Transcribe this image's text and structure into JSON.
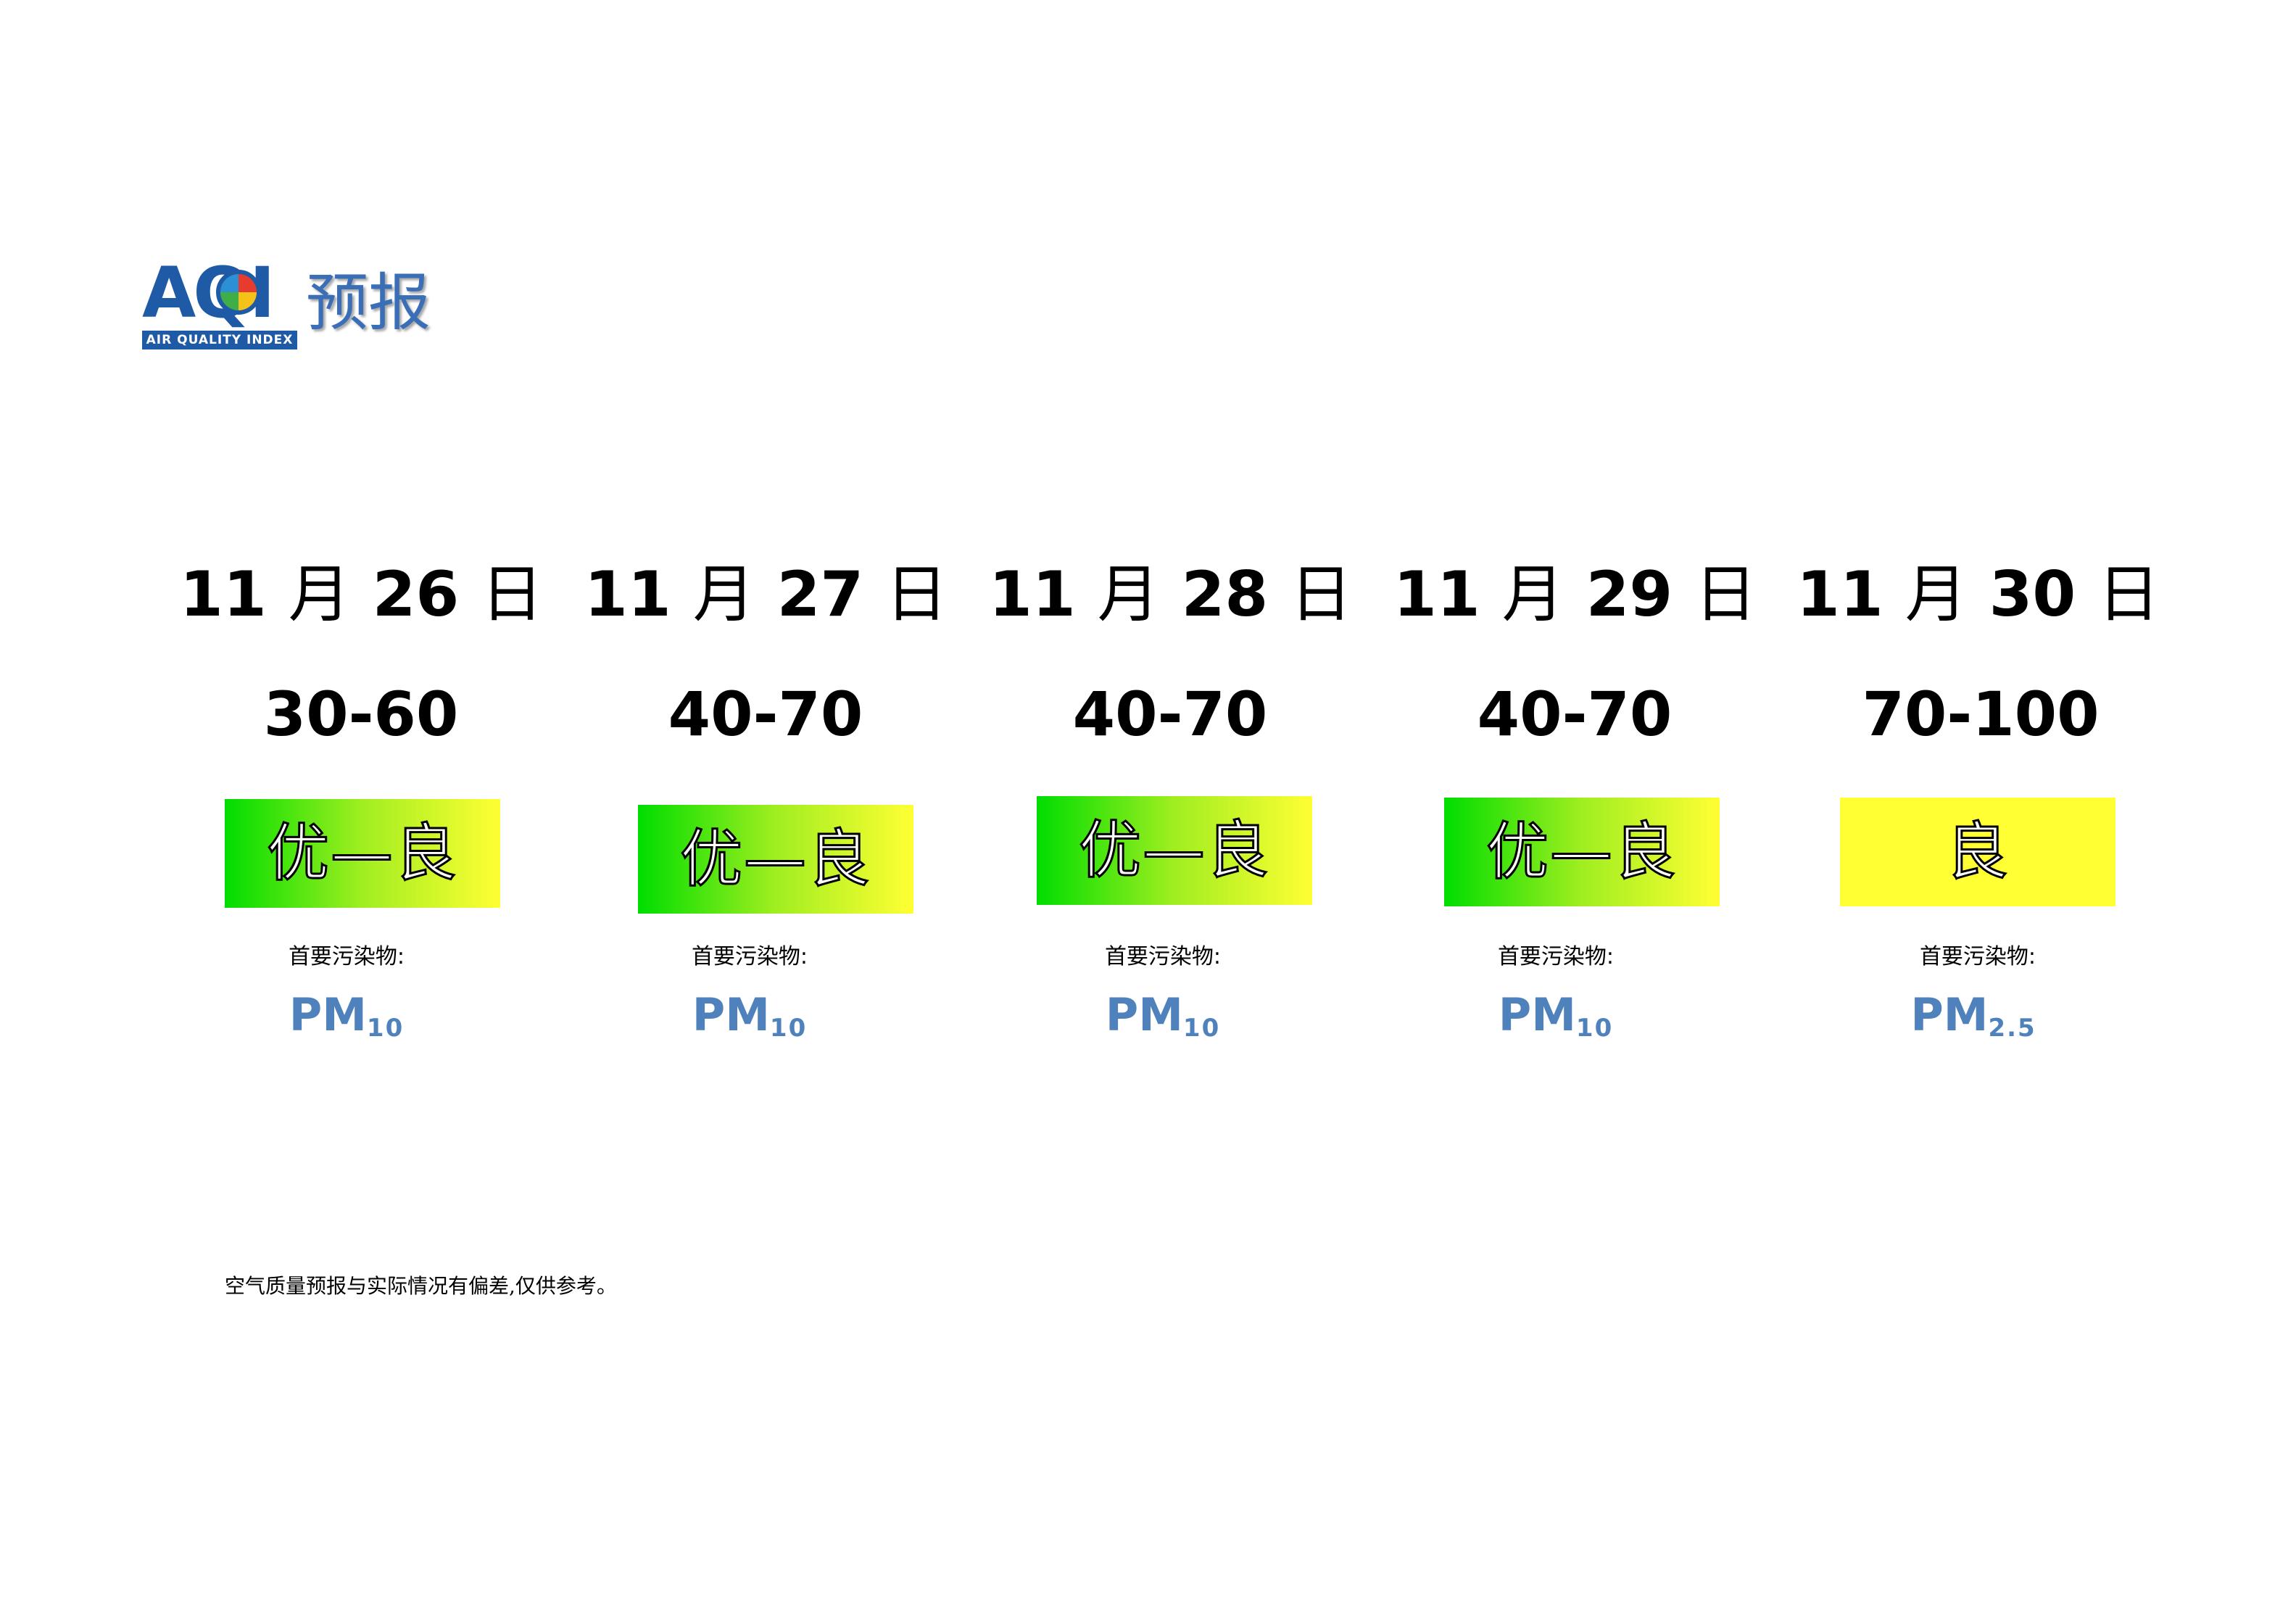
{
  "logo": {
    "abbr": "AQI",
    "band_text": "AIR QUALITY INDEX",
    "title": "预报",
    "brand_color": "#1f5aa6"
  },
  "forecast": [
    {
      "month": "11",
      "month_unit": "月",
      "day": "26",
      "day_unit": "日",
      "range": "30-60",
      "level": "优—良",
      "level_style": "gradient",
      "pollutant_label": "首要污染物:",
      "pollutant": "PM",
      "pollutant_sub": "10"
    },
    {
      "month": "11",
      "month_unit": "月",
      "day": "27",
      "day_unit": "日",
      "range": "40-70",
      "level": "优—良",
      "level_style": "gradient",
      "pollutant_label": "首要污染物:",
      "pollutant": "PM",
      "pollutant_sub": "10"
    },
    {
      "month": "11",
      "month_unit": "月",
      "day": "28",
      "day_unit": "日",
      "range": "40-70",
      "level": "优—良",
      "level_style": "gradient",
      "pollutant_label": "首要污染物:",
      "pollutant": "PM",
      "pollutant_sub": "10"
    },
    {
      "month": "11",
      "month_unit": "月",
      "day": "29",
      "day_unit": "日",
      "range": "40-70",
      "level": "优—良",
      "level_style": "gradient",
      "pollutant_label": "首要污染物:",
      "pollutant": "PM",
      "pollutant_sub": "10"
    },
    {
      "month": "11",
      "month_unit": "月",
      "day": "30",
      "day_unit": "日",
      "range": "70-100",
      "level": "良",
      "level_style": "yellow",
      "pollutant_label": "首要污染物:",
      "pollutant": "PM",
      "pollutant_sub": "2.5"
    }
  ],
  "colors": {
    "good": "#00dd00",
    "moderate": "#ffff33",
    "pollutant_text": "#4f81bd"
  },
  "footnote": "空气质量预报与实际情况有偏差,仅供参考。"
}
